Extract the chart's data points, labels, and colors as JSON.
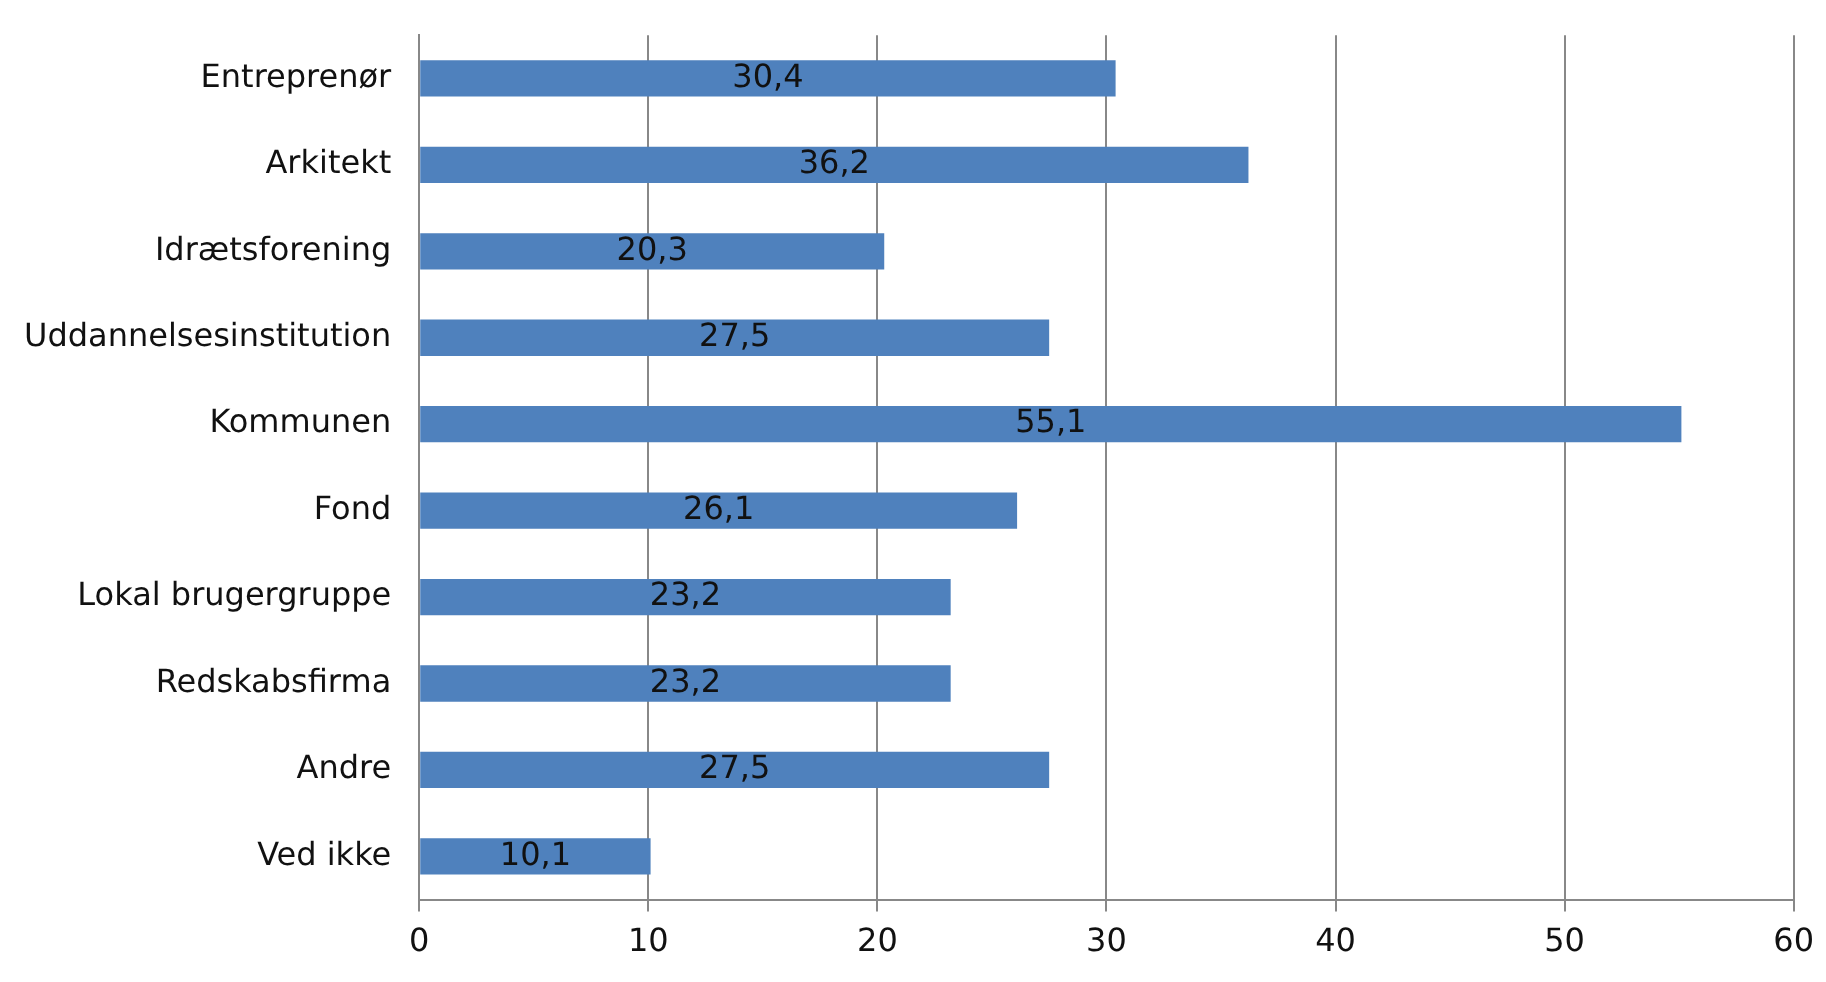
{
  "chart_data": {
    "type": "bar",
    "orientation": "horizontal",
    "categories": [
      "Entreprenør",
      "Arkitekt",
      "Idrætsforening",
      "Uddannelsesinstitution",
      "Kommunen",
      "Fond",
      "Lokal brugergruppe",
      "Redskabsfirma",
      "Andre",
      "Ved ikke"
    ],
    "values": [
      30.4,
      36.2,
      20.3,
      27.5,
      55.1,
      26.1,
      23.2,
      23.2,
      27.5,
      10.1
    ],
    "value_labels": [
      "30,4",
      "36,2",
      "20,3",
      "27,5",
      "55,1",
      "26,1",
      "23,2",
      "23,2",
      "27,5",
      "10,1"
    ],
    "color": "#4f81bd",
    "xlim": [
      0,
      60
    ],
    "xticks": [
      0,
      10,
      20,
      30,
      40,
      50,
      60
    ],
    "grid": "x",
    "legend": false
  }
}
